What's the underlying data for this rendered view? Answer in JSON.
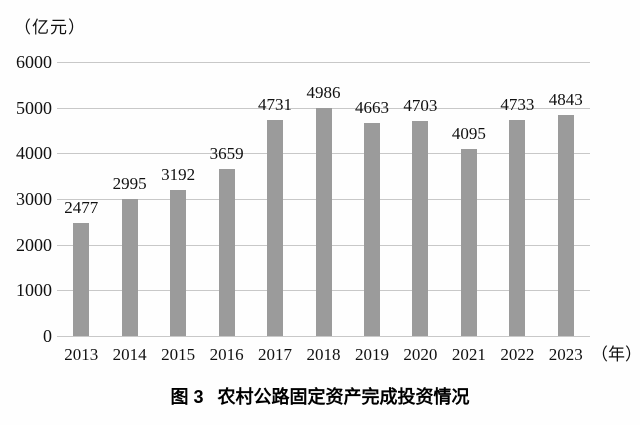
{
  "chart_data": {
    "type": "bar",
    "categories": [
      "2013",
      "2014",
      "2015",
      "2016",
      "2017",
      "2018",
      "2019",
      "2020",
      "2021",
      "2022",
      "2023"
    ],
    "values": [
      2477,
      2995,
      3192,
      3659,
      4731,
      4986,
      4663,
      4703,
      4095,
      4733,
      4843
    ],
    "title": "图 3  农村公路固定资产完成投资情况",
    "xlabel": "",
    "ylabel": "（亿元）",
    "x_unit_label": "（年）",
    "ylim": [
      0,
      6000
    ],
    "yticks": [
      0,
      1000,
      2000,
      3000,
      4000,
      5000,
      6000
    ],
    "grid": true,
    "legend": "none",
    "bar_color": "#9b9b9b",
    "gridline_color": "#c8c8c8",
    "text_color": "#111111"
  },
  "caption": {
    "figure_label": "图 3",
    "title": "农村公路固定资产完成投资情况"
  }
}
